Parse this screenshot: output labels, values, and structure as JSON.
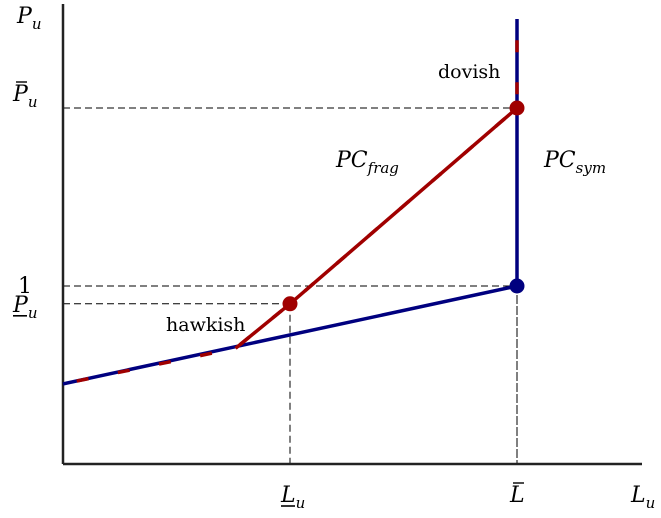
{
  "chart_data": {
    "type": "line",
    "xlabel": "L",
    "xlabel_sub": "u",
    "ylabel": "P",
    "ylabel_sub": "u",
    "x_ticks": [
      {
        "main": "L",
        "sub": "u",
        "decor": "underline",
        "value": 0.5
      },
      {
        "main": "L",
        "sub": "",
        "decor": "bar",
        "value": 1.0
      }
    ],
    "y_ticks": [
      {
        "main": "P",
        "sub": "u",
        "decor": "underline",
        "value": 0.9
      },
      {
        "main": "1",
        "sub": "",
        "decor": "",
        "value": 1.0
      },
      {
        "main": "P",
        "sub": "u",
        "decor": "bar",
        "value": 2.0
      }
    ],
    "xlim": [
      0,
      1.25
    ],
    "ylim": [
      0,
      2.5
    ],
    "colors": {
      "frag": "#a00000",
      "sym": "#00007f",
      "axis": "#222222"
    },
    "series": [
      {
        "name_main": "PC",
        "name_sub": "sym",
        "color": "#00007f",
        "x": [
          0,
          1.0,
          1.0,
          1.0
        ],
        "y": [
          0.45,
          1.0,
          2.0,
          2.5
        ]
      },
      {
        "name_main": "PC",
        "name_sub": "frag",
        "color": "#a00000",
        "x": [
          0,
          0.38,
          0.5,
          1.0,
          1.0
        ],
        "y": [
          0.45,
          0.65,
          0.9,
          2.0,
          2.5
        ]
      }
    ],
    "points": [
      {
        "x": 0.5,
        "y": 0.9,
        "color": "#a00000",
        "label": "hawkish"
      },
      {
        "x": 1.0,
        "y": 2.0,
        "color": "#a00000",
        "label": "dovish"
      },
      {
        "x": 1.0,
        "y": 1.0,
        "color": "#00007f",
        "label": ""
      }
    ],
    "guides": [
      {
        "x": 0.5,
        "y": 0.9
      },
      {
        "x": 1.0,
        "y": 1.0
      },
      {
        "x": 1.0,
        "y": 2.0
      }
    ]
  }
}
